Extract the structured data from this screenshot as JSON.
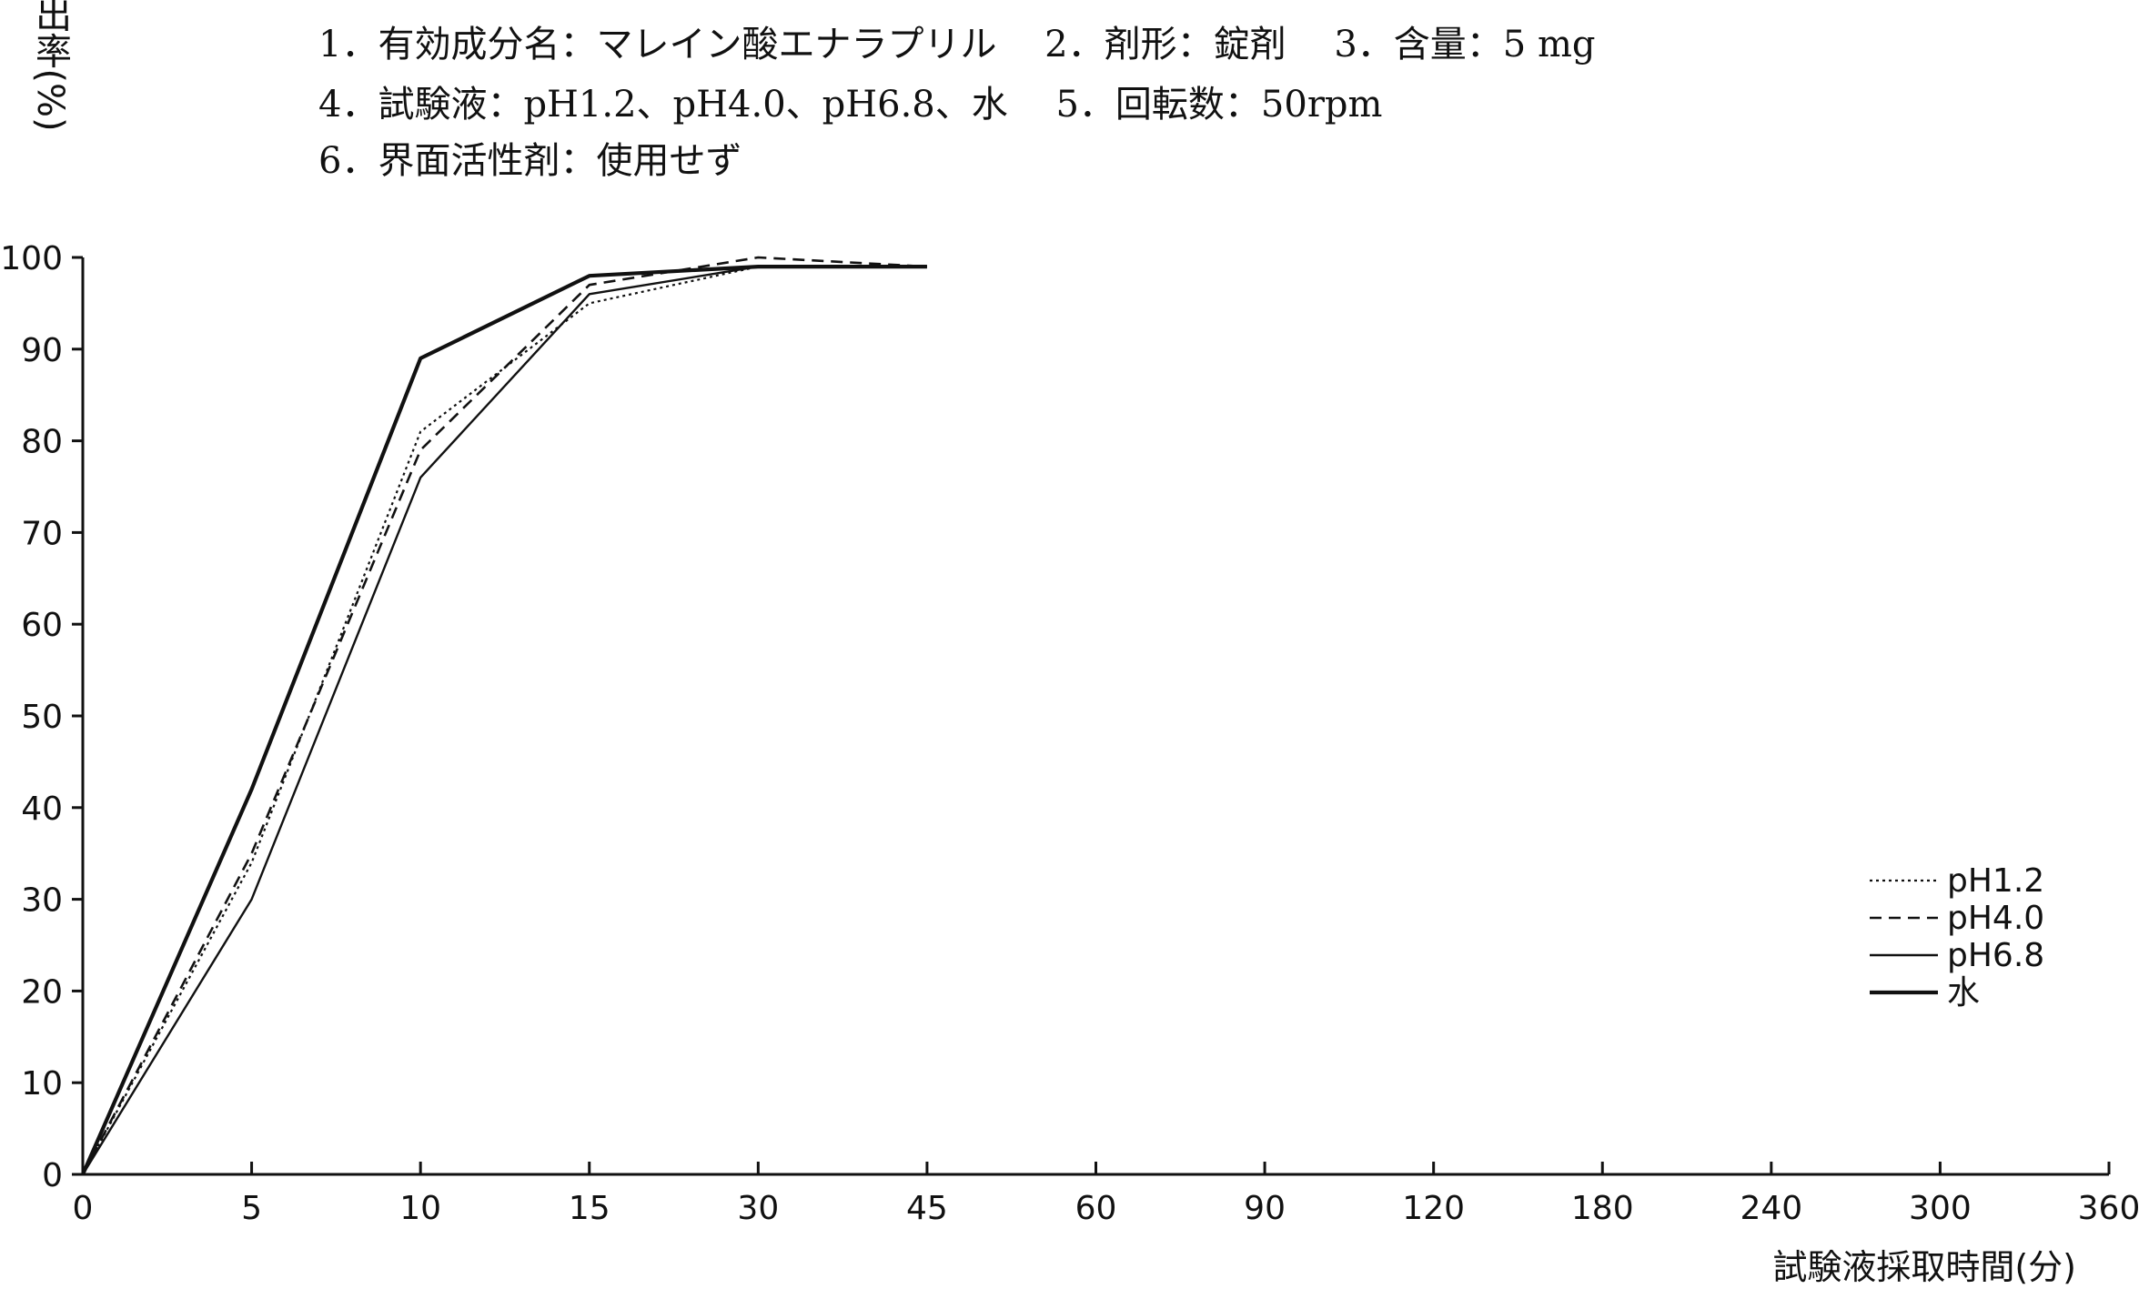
{
  "header": {
    "line1": "1．有効成分名：マレイン酸エナラプリル　 2．剤形：錠剤　 3．含量：5 mg",
    "line2": "4．試験液：pH1.2、pH4.0、pH6.8、水　 5．回転数：50rpm",
    "line3": "6．界面活性剤：使用せず"
  },
  "chart_data": {
    "type": "line",
    "ylabel": "溶出率(%)",
    "xlabel": "試験液採取時間(分)",
    "categories": [
      "0",
      "5",
      "10",
      "15",
      "30",
      "45",
      "60",
      "90",
      "120",
      "180",
      "240",
      "300",
      "360"
    ],
    "x": [
      0,
      5,
      10,
      15,
      30,
      45
    ],
    "ylim": [
      0,
      100
    ],
    "yticks": [
      "0",
      "10",
      "20",
      "30",
      "40",
      "50",
      "60",
      "70",
      "80",
      "90",
      "100"
    ],
    "grid": false,
    "legend_position": "right",
    "series": [
      {
        "name": "pH1.2",
        "style": "dotted",
        "values": [
          0,
          34,
          81,
          95,
          99,
          99
        ]
      },
      {
        "name": "pH4.0",
        "style": "dashed",
        "values": [
          0,
          35,
          79,
          97,
          100,
          99
        ]
      },
      {
        "name": "pH6.8",
        "style": "solid",
        "values": [
          0,
          30,
          76,
          96,
          99,
          99
        ]
      },
      {
        "name": "水",
        "style": "solid-thick",
        "values": [
          0,
          42,
          89,
          98,
          99,
          99
        ]
      }
    ]
  }
}
